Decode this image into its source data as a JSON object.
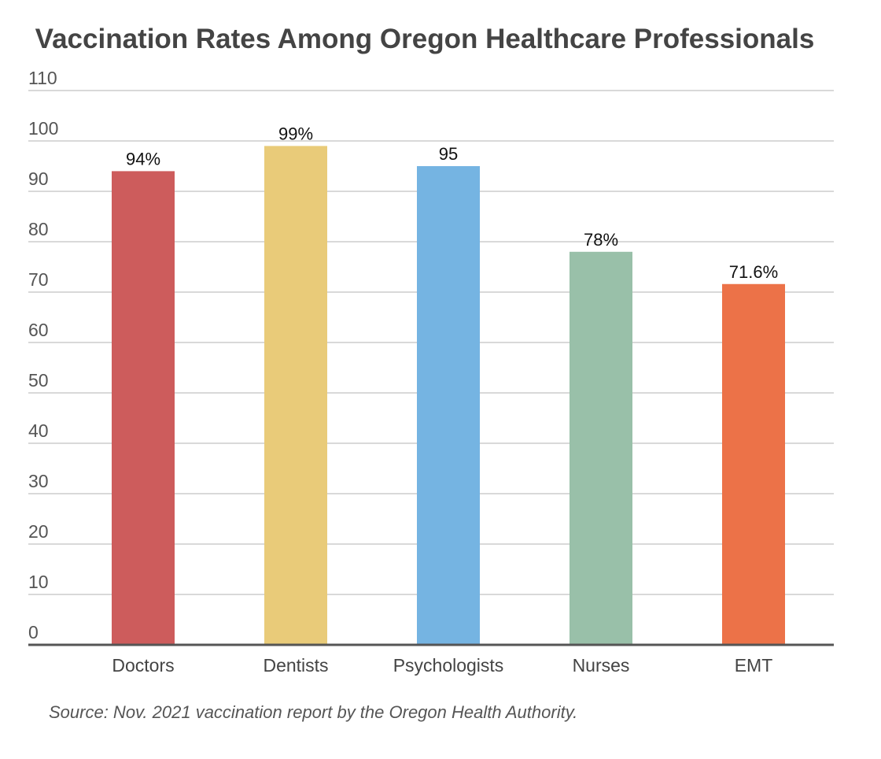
{
  "chart_data": {
    "type": "bar",
    "title": "Vaccination Rates Among Oregon Healthcare Professionals",
    "xlabel": "",
    "ylabel": "",
    "categories": [
      "Doctors",
      "Dentists",
      "Psychologists",
      "Nurses",
      "EMT"
    ],
    "values": [
      94,
      99,
      95,
      78,
      71.6
    ],
    "data_labels": [
      "94%",
      "99%",
      "95",
      "78%",
      "71.6%"
    ],
    "colors": [
      "#cd5c5c",
      "#e9cb79",
      "#75b4e2",
      "#99c0a9",
      "#ec7248"
    ],
    "ylim": [
      0,
      110
    ],
    "yticks": [
      0,
      10,
      20,
      30,
      40,
      50,
      60,
      70,
      80,
      90,
      100,
      110
    ],
    "grid": true,
    "legend": "none"
  },
  "source": "Source: Nov. 2021 vaccination report by the Oregon Health Authority."
}
